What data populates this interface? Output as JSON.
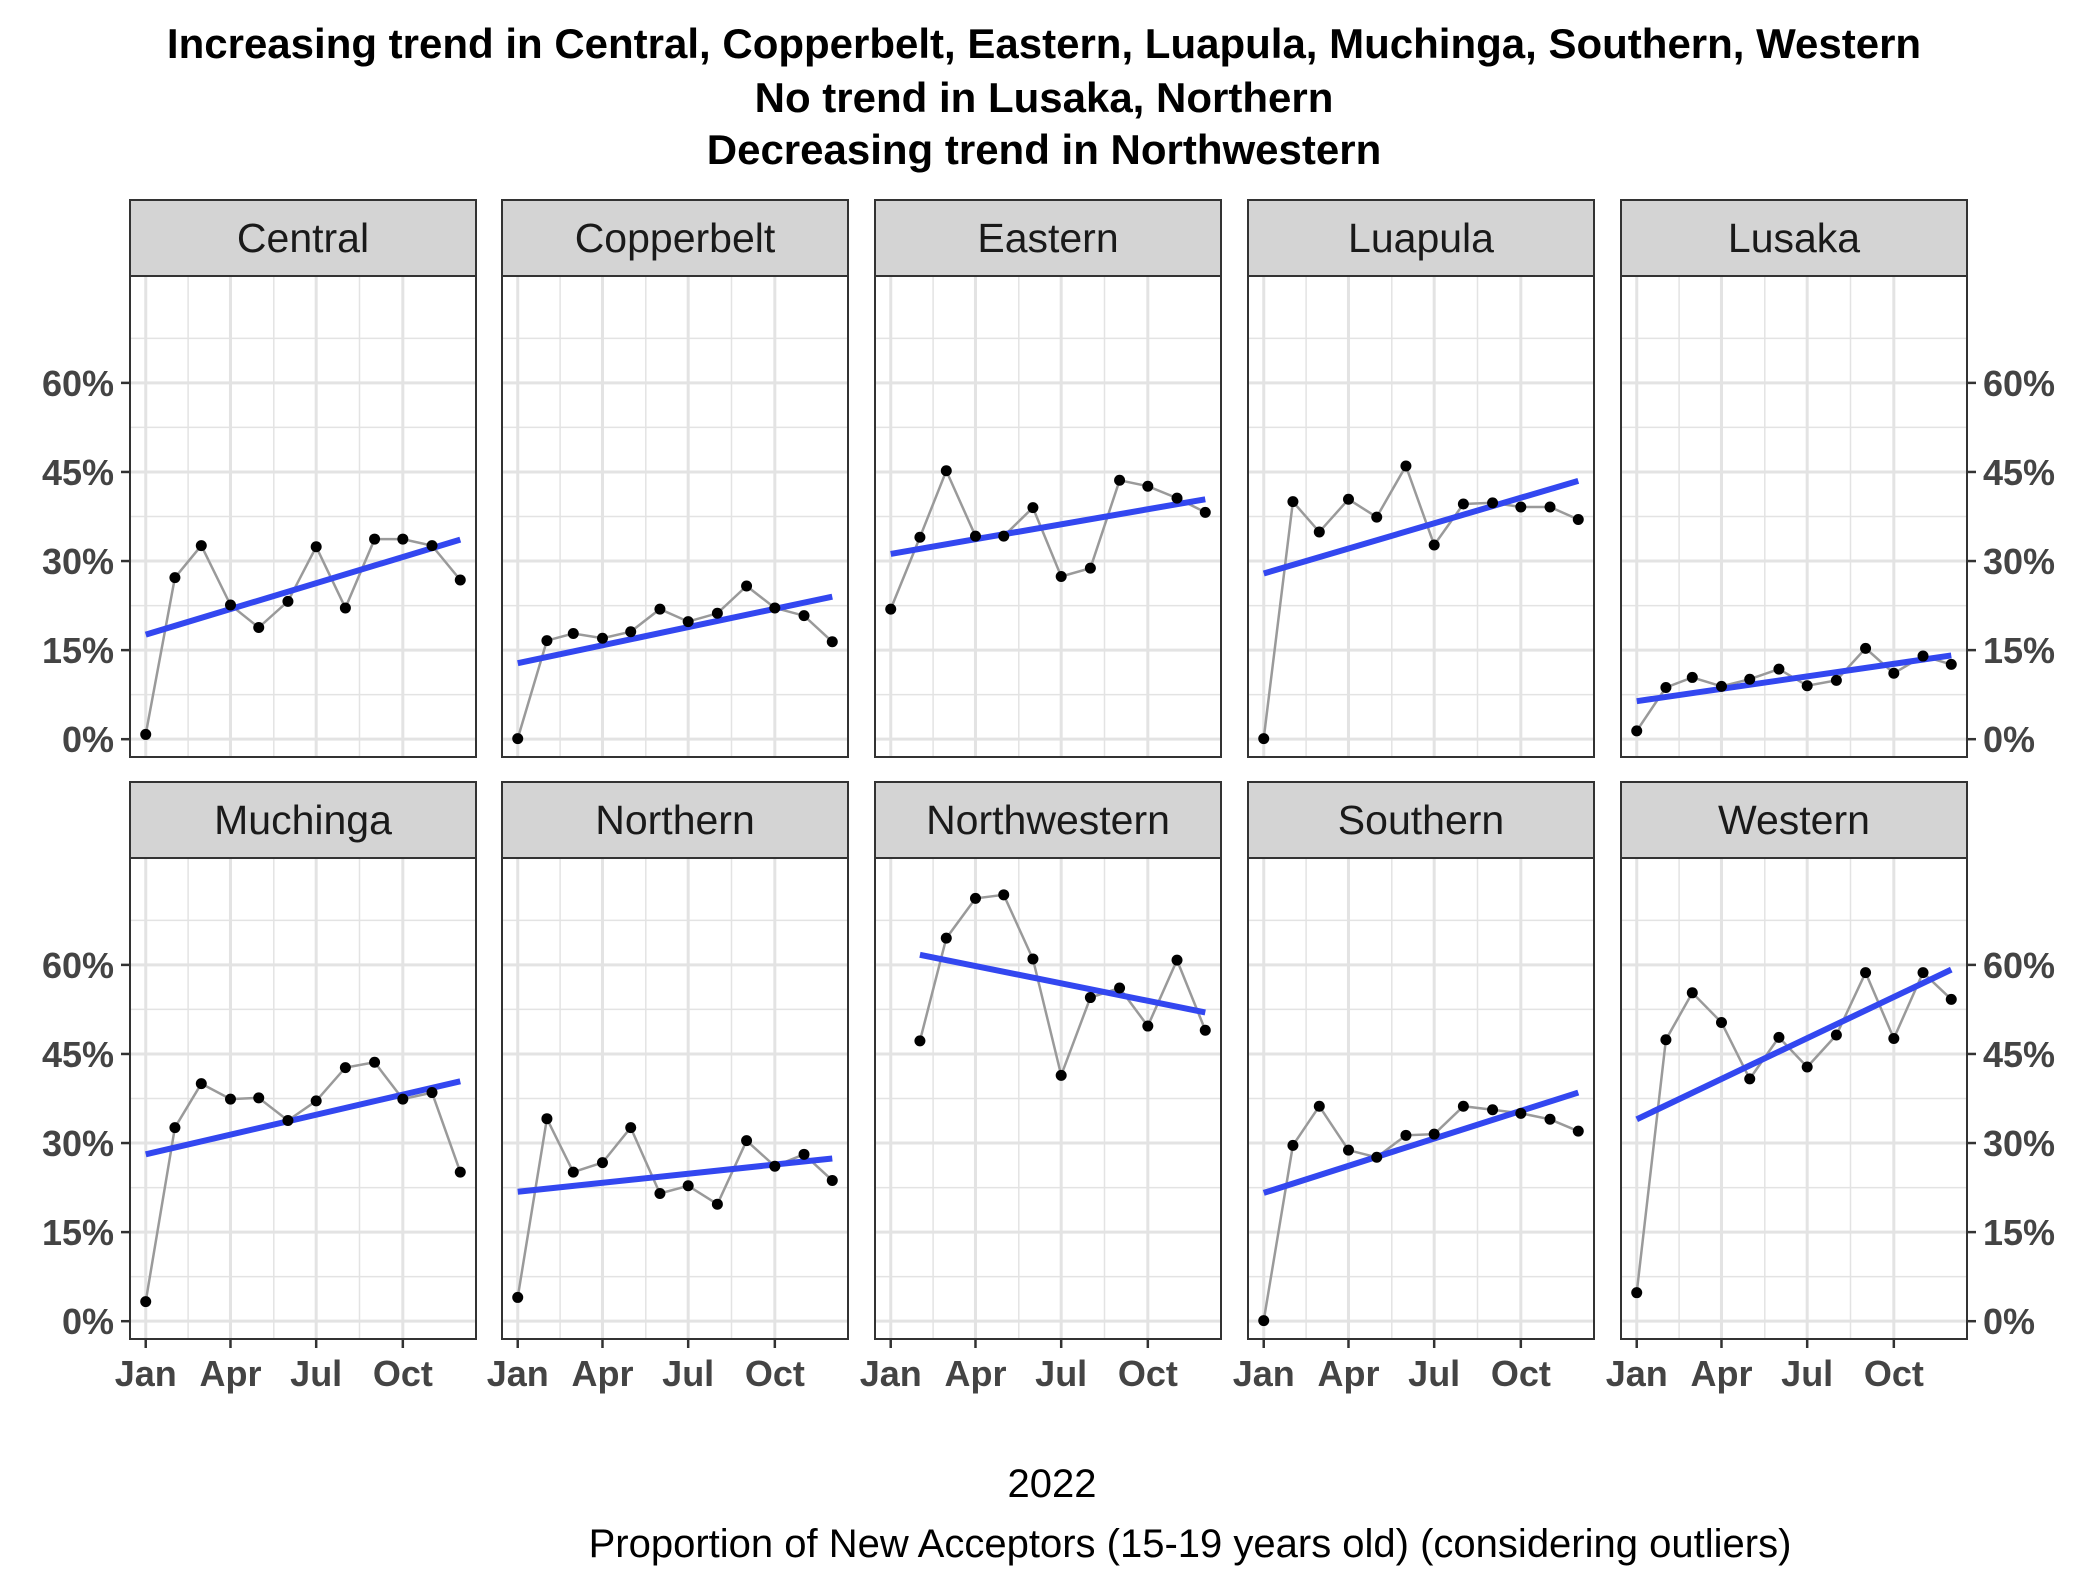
{
  "chart_data": {
    "type": "line",
    "title_lines": [
      "Increasing trend in Central, Copperbelt, Eastern, Luapula, Muchinga, Southern, Western",
      "No trend in Lusaka, Northern",
      "Decreasing trend in Northwestern"
    ],
    "xlabel": "2022",
    "caption": "Proportion of New Acceptors (15-19 years old) (considering outliers)",
    "x_ticks": [
      "Jan",
      "Apr",
      "Jul",
      "Oct"
    ],
    "y_ticks": [
      "0%",
      "15%",
      "30%",
      "45%",
      "60%"
    ],
    "ylim_top_row": [
      -3,
      78
    ],
    "ylim_bottom_row": [
      -3,
      78
    ],
    "months": [
      "Jan 2022",
      "Feb 2022",
      "Mar 2022",
      "Apr 2022",
      "May 2022",
      "Jun 2022",
      "Jul 2022",
      "Aug 2022",
      "Sep 2022",
      "Oct 2022",
      "Nov 2022",
      "Dec 2022"
    ],
    "grid": true,
    "colors": {
      "trend": "#3347f0",
      "observed": "#9a9a9a",
      "points": "#000000",
      "strip": "#d4d4d4"
    },
    "panels": [
      {
        "name": "Central",
        "trend_direction": "Increasing",
        "values": [
          0.8,
          27.2,
          32.6,
          22.6,
          18.8,
          23.2,
          32.4,
          22.1,
          33.7,
          33.7,
          32.6,
          26.8
        ],
        "trend": [
          17.6,
          33.6
        ]
      },
      {
        "name": "Copperbelt",
        "trend_direction": "Increasing",
        "values": [
          0.1,
          16.6,
          17.8,
          17.0,
          18.1,
          21.9,
          19.8,
          21.2,
          25.8,
          22.1,
          20.8,
          16.4
        ],
        "trend": [
          12.8,
          24.0
        ]
      },
      {
        "name": "Eastern",
        "trend_direction": "Increasing",
        "values": [
          21.9,
          34.0,
          45.2,
          34.2,
          34.2,
          39.0,
          27.4,
          28.8,
          43.6,
          42.6,
          40.6,
          38.2
        ],
        "trend": [
          31.2,
          40.4
        ]
      },
      {
        "name": "Luapula",
        "trend_direction": "Increasing",
        "values": [
          0.1,
          40.0,
          34.9,
          40.4,
          37.4,
          46.0,
          32.7,
          39.6,
          39.8,
          39.1,
          39.1,
          37.0
        ],
        "trend": [
          27.9,
          43.5
        ]
      },
      {
        "name": "Lusaka",
        "trend_direction": "No trend",
        "values": [
          1.4,
          8.7,
          10.4,
          8.9,
          10.1,
          11.8,
          9.0,
          9.9,
          15.3,
          11.1,
          14.0,
          12.6
        ],
        "trend": [
          6.4,
          14.1
        ]
      },
      {
        "name": "Muchinga",
        "trend_direction": "Increasing",
        "values": [
          3.3,
          32.6,
          40.0,
          37.4,
          37.6,
          33.8,
          37.1,
          42.7,
          43.6,
          37.4,
          38.5,
          25.1
        ],
        "trend": [
          28.1,
          40.4
        ]
      },
      {
        "name": "Northern",
        "trend_direction": "No trend",
        "values": [
          4.0,
          34.1,
          25.1,
          26.7,
          32.6,
          21.5,
          22.8,
          19.7,
          30.4,
          26.1,
          28.1,
          23.7
        ],
        "trend": [
          21.8,
          27.4
        ]
      },
      {
        "name": "Northwestern",
        "trend_direction": "Decreasing",
        "values": [
          null,
          47.2,
          64.5,
          71.2,
          71.8,
          61.0,
          41.4,
          54.5,
          56.1,
          49.7,
          60.8,
          49.0
        ],
        "trend": [
          61.7,
          52.0
        ]
      },
      {
        "name": "Southern",
        "trend_direction": "Increasing",
        "values": [
          0.1,
          29.6,
          36.2,
          28.8,
          27.6,
          31.3,
          31.5,
          36.2,
          35.6,
          35.0,
          34.0,
          32.0
        ],
        "trend": [
          21.6,
          38.5
        ]
      },
      {
        "name": "Western",
        "trend_direction": "Increasing",
        "values": [
          4.8,
          47.4,
          55.3,
          50.3,
          40.8,
          47.8,
          42.8,
          48.2,
          58.7,
          47.6,
          58.7,
          54.2
        ],
        "trend": [
          34.0,
          59.2
        ]
      }
    ]
  }
}
